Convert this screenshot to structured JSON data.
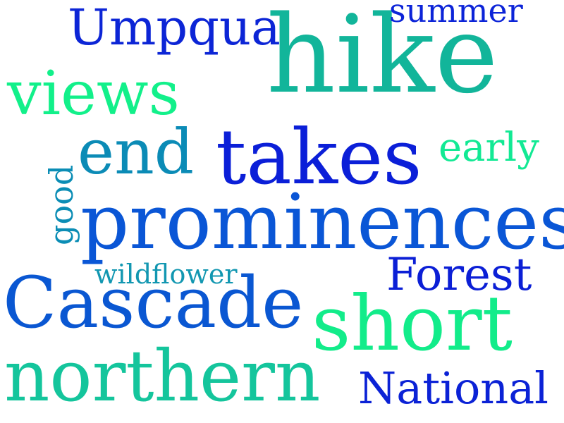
{
  "words": [
    {
      "text": "hike",
      "color": "#12b59a"
    },
    {
      "text": "prominences",
      "color": "#0a56d6"
    },
    {
      "text": "takes",
      "color": "#0b1fd8"
    },
    {
      "text": "Cascade",
      "color": "#0a57d2"
    },
    {
      "text": "short",
      "color": "#12ec8a"
    },
    {
      "text": "northern",
      "color": "#14c59c"
    },
    {
      "text": "views",
      "color": "#12f08a"
    },
    {
      "text": "end",
      "color": "#0b8bb6"
    },
    {
      "text": "Umpqua",
      "color": "#0c25d6"
    },
    {
      "text": "Forest",
      "color": "#0b1fd6"
    },
    {
      "text": "National",
      "color": "#0b22d6"
    },
    {
      "text": "early",
      "color": "#12e994"
    },
    {
      "text": "summer",
      "color": "#0c24d8"
    },
    {
      "text": "wildflower",
      "color": "#1297b1"
    },
    {
      "text": "good",
      "color": "#0b8db5"
    }
  ]
}
